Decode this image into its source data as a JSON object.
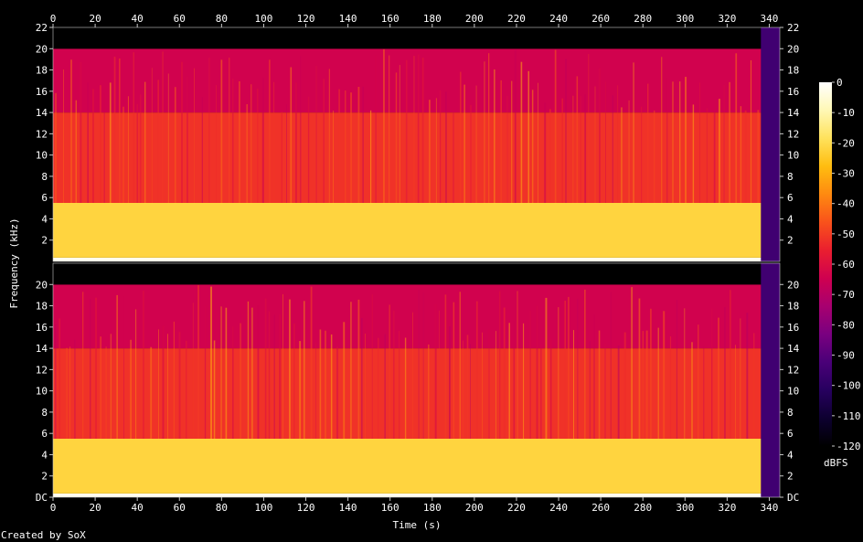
{
  "credit": "Created by SoX",
  "colors": {
    "background": "#000000",
    "text": "#ffffff",
    "axis": "#c8c8c8",
    "palette": [
      "#000000",
      "#0d0030",
      "#27005f",
      "#4a0078",
      "#7a0080",
      "#a8006f",
      "#cf0050",
      "#ea1f2f",
      "#f9521b",
      "#fe8a10",
      "#ffbd10",
      "#ffe25c",
      "#fff8b5",
      "#ffffff"
    ]
  },
  "chart_data": {
    "type": "heatmap",
    "xlabel": "Time (s)",
    "ylabel": "Frequency (kHz)",
    "x_range": [
      0,
      345
    ],
    "x_ticks": [
      0,
      20,
      40,
      60,
      80,
      100,
      120,
      140,
      160,
      180,
      200,
      220,
      240,
      260,
      280,
      300,
      320,
      340
    ],
    "x_tick_labels": [
      "0",
      "20",
      "40",
      "60",
      "80",
      "100",
      "120",
      "140",
      "160",
      "180",
      "200",
      "220",
      "240",
      "260",
      "280",
      "300",
      "320",
      "340"
    ],
    "y_range_khz": [
      0,
      22
    ],
    "channels": [
      {
        "y_ticks": [
          2,
          4,
          6,
          8,
          10,
          12,
          14,
          16,
          18,
          20,
          22
        ],
        "y_tick_labels": [
          "2",
          "4",
          "6",
          "8",
          "10",
          "12",
          "14",
          "16",
          "18",
          "20",
          "22"
        ]
      },
      {
        "y_ticks": [
          0,
          2,
          4,
          6,
          8,
          10,
          12,
          14,
          16,
          18,
          20
        ],
        "y_tick_labels": [
          "DC",
          "2",
          "4",
          "6",
          "8",
          "10",
          "12",
          "14",
          "16",
          "18",
          "20"
        ]
      }
    ],
    "colorbar": {
      "unit": "dBFS",
      "range_db": [
        -120,
        0
      ],
      "ticks": [
        0,
        -10,
        -20,
        -30,
        -40,
        -50,
        -60,
        -70,
        -80,
        -90,
        -100,
        -110,
        -120
      ],
      "tick_labels": [
        "0",
        "-10",
        "-20",
        "-30",
        "-40",
        "-50",
        "-60",
        "-70",
        "-80",
        "-90",
        "-100",
        "-110",
        "-120"
      ]
    },
    "bands_db": [
      {
        "from_khz": 0,
        "to_khz": 0.35,
        "db": -2
      },
      {
        "from_khz": 0.35,
        "to_khz": 5.5,
        "db": -22
      },
      {
        "from_khz": 5.5,
        "to_khz": 14,
        "db": -52
      },
      {
        "from_khz": 14,
        "to_khz": 20,
        "db": -64
      },
      {
        "from_khz": 20,
        "to_khz": 22,
        "db": -120
      }
    ],
    "fade_out_s": [
      336,
      345
    ]
  }
}
